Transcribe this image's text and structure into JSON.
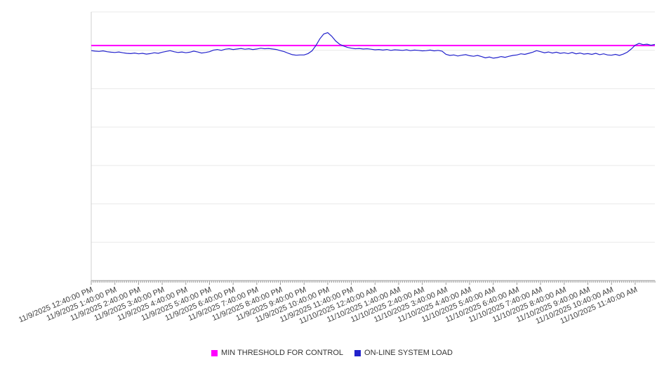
{
  "chart_data": {
    "type": "line",
    "title": "",
    "xlabel": "",
    "ylabel": "",
    "ylim": [
      0,
      100
    ],
    "y_ticks_visible": false,
    "grid": "horizontal",
    "legend_position": "bottom-center",
    "x_start": "11/9/2025 12:40:00 PM",
    "x_interval_minutes": 10,
    "points_per_hour": 6,
    "x_tick_labels": [
      "11/9/2025 12:40:00 PM",
      "11/9/2025 1:40:00 PM",
      "11/9/2025 2:40:00 PM",
      "11/9/2025 3:40:00 PM",
      "11/9/2025 4:40:00 PM",
      "11/9/2025 5:40:00 PM",
      "11/9/2025 6:40:00 PM",
      "11/9/2025 7:40:00 PM",
      "11/9/2025 8:40:00 PM",
      "11/9/2025 9:40:00 PM",
      "11/9/2025 10:40:00 PM",
      "11/9/2025 11:40:00 PM",
      "11/10/2025 12:40:00 AM",
      "11/10/2025 1:40:00 AM",
      "11/10/2025 2:40:00 AM",
      "11/10/2025 3:40:00 AM",
      "11/10/2025 4:40:00 AM",
      "11/10/2025 5:40:00 AM",
      "11/10/2025 6:40:00 AM",
      "11/10/2025 7:40:00 AM",
      "11/10/2025 8:40:00 AM",
      "11/10/2025 9:40:00 AM",
      "11/10/2025 10:40:00 AM",
      "11/10/2025 11:40:00 AM"
    ],
    "series": [
      {
        "name": "MIN THRESHOLD FOR CONTROL",
        "color": "#ff00ff",
        "type": "constant",
        "value": 87.5
      },
      {
        "name": "ON-LINE SYSTEM LOAD",
        "color": "#2222cc",
        "type": "line",
        "values": [
          85.6,
          85.4,
          85.3,
          85.5,
          85.2,
          85.0,
          84.9,
          85.1,
          84.8,
          84.6,
          84.5,
          84.7,
          84.4,
          84.6,
          84.3,
          84.5,
          84.8,
          84.6,
          85.0,
          85.3,
          85.6,
          85.2,
          84.9,
          85.1,
          84.8,
          85.0,
          85.4,
          85.1,
          84.7,
          84.9,
          85.2,
          85.8,
          86.0,
          85.7,
          86.1,
          86.3,
          86.0,
          86.2,
          86.4,
          86.1,
          86.3,
          86.0,
          86.2,
          86.5,
          86.3,
          86.4,
          86.2,
          86.0,
          85.6,
          85.2,
          84.6,
          84.1,
          83.9,
          84.0,
          84.0,
          84.5,
          85.5,
          87.5,
          90.0,
          91.8,
          92.3,
          91.0,
          89.2,
          88.0,
          87.3,
          86.8,
          86.5,
          86.3,
          86.4,
          86.2,
          86.3,
          86.1,
          85.9,
          86.0,
          85.8,
          86.0,
          85.7,
          85.9,
          85.8,
          85.7,
          85.9,
          85.6,
          85.8,
          85.7,
          85.5,
          85.6,
          85.8,
          85.5,
          85.7,
          85.4,
          84.2,
          83.8,
          84.0,
          83.6,
          83.9,
          84.1,
          83.7,
          83.5,
          83.8,
          83.4,
          82.9,
          83.2,
          82.8,
          83.0,
          83.4,
          83.1,
          83.5,
          83.8,
          84.0,
          84.4,
          84.2,
          84.6,
          85.0,
          85.6,
          85.2,
          84.8,
          85.1,
          84.7,
          85.0,
          84.6,
          84.8,
          84.5,
          84.9,
          84.4,
          84.7,
          84.3,
          84.5,
          84.2,
          84.6,
          84.1,
          84.4,
          84.0,
          83.9,
          84.2,
          83.8,
          84.3,
          85.0,
          86.2,
          87.6,
          88.3,
          87.8,
          88.0,
          87.6,
          87.9
        ]
      }
    ]
  },
  "colors": {
    "gridline": "#e9e9e9",
    "axis": "#9a9a9a",
    "label_text": "#3f3f3f"
  }
}
